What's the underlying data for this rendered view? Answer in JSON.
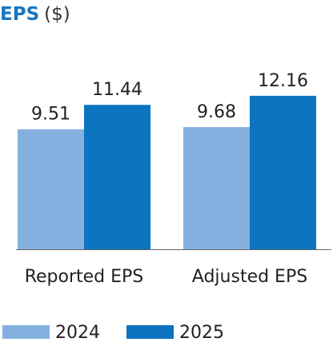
{
  "chart_data": {
    "type": "bar",
    "title": "EPS",
    "unit": "($)",
    "categories": [
      "Reported EPS",
      "Adjusted EPS"
    ],
    "series": [
      {
        "name": "2024",
        "values": [
          9.51,
          9.68
        ],
        "color": "#84b1e0"
      },
      {
        "name": "2025",
        "values": [
          11.44,
          12.16
        ],
        "color": "#0c74c0"
      }
    ],
    "ylim": [
      0,
      14.5
    ],
    "grid": false,
    "legend": "bottom-left",
    "data_labels": true
  }
}
